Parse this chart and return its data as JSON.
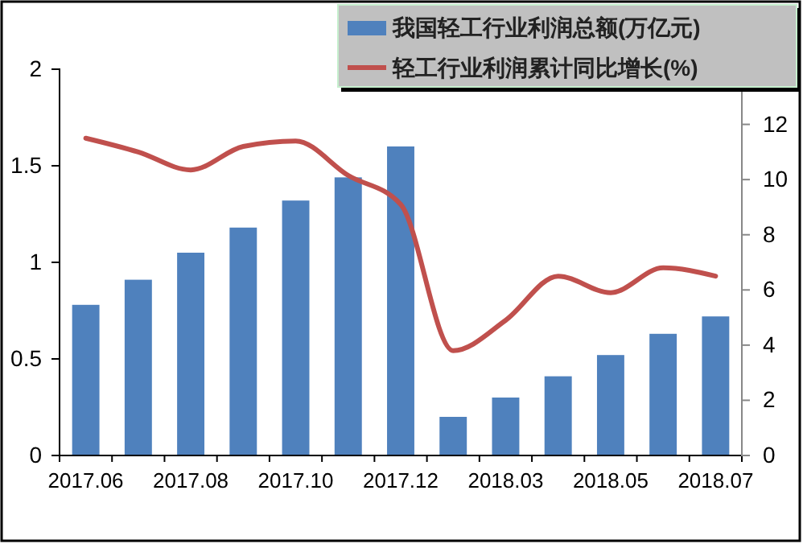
{
  "chart_data": {
    "type": "bar",
    "categories": [
      "2017.06",
      null,
      "2017.08",
      null,
      "2017.10",
      null,
      "2017.12",
      null,
      "2018.03",
      null,
      "2018.05",
      null,
      "2018.07"
    ],
    "series": [
      {
        "name": "我国轻工行业利润总额(万亿元)",
        "color": "#4f81bd",
        "values": [
          0.78,
          0.91,
          1.05,
          1.18,
          1.32,
          1.44,
          1.6,
          0.2,
          0.3,
          0.41,
          0.52,
          0.63,
          0.72
        ]
      },
      {
        "name": "轻工行业利润累计同比增长(%)",
        "type": "line",
        "axis": "y2",
        "color": "#c0504d",
        "values": [
          11.5,
          11.0,
          10.35,
          11.2,
          11.4,
          10.15,
          9.1,
          3.8,
          4.9,
          6.5,
          5.9,
          6.8,
          6.5
        ]
      }
    ],
    "ylim": [
      0,
      2
    ],
    "yticks": [
      0,
      0.5,
      1,
      1.5,
      2
    ],
    "y2lim": [
      0,
      14
    ],
    "y2ticks": [
      0,
      2,
      4,
      6,
      8,
      10,
      12
    ],
    "legend": "top right",
    "grid": false,
    "marker": "none",
    "line_style": "solid"
  }
}
